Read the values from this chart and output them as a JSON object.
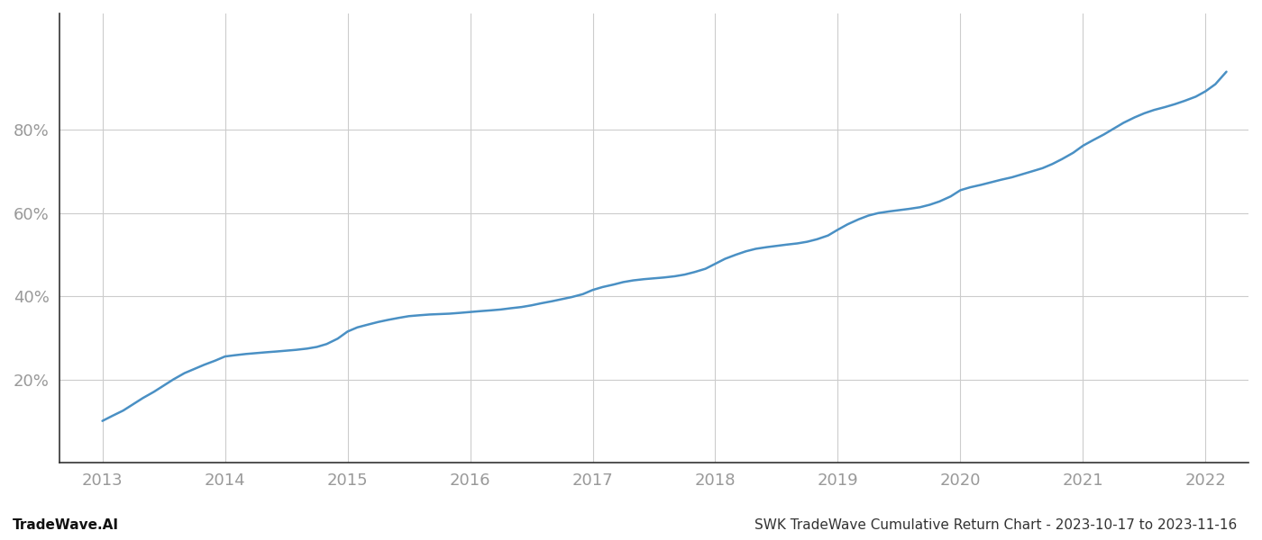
{
  "title": "SWK TradeWave Cumulative Return Chart - 2023-10-17 to 2023-11-16",
  "watermark": "TradeWave.AI",
  "line_color": "#4a90c4",
  "background_color": "#ffffff",
  "grid_color": "#cccccc",
  "x_values": [
    2013.0,
    2013.08,
    2013.17,
    2013.25,
    2013.33,
    2013.42,
    2013.5,
    2013.58,
    2013.67,
    2013.75,
    2013.83,
    2013.92,
    2014.0,
    2014.08,
    2014.17,
    2014.25,
    2014.33,
    2014.42,
    2014.5,
    2014.58,
    2014.67,
    2014.75,
    2014.83,
    2014.92,
    2015.0,
    2015.08,
    2015.17,
    2015.25,
    2015.33,
    2015.42,
    2015.5,
    2015.58,
    2015.67,
    2015.75,
    2015.83,
    2015.92,
    2016.0,
    2016.08,
    2016.17,
    2016.25,
    2016.33,
    2016.42,
    2016.5,
    2016.58,
    2016.67,
    2016.75,
    2016.83,
    2016.92,
    2017.0,
    2017.08,
    2017.17,
    2017.25,
    2017.33,
    2017.42,
    2017.5,
    2017.58,
    2017.67,
    2017.75,
    2017.83,
    2017.92,
    2018.0,
    2018.08,
    2018.17,
    2018.25,
    2018.33,
    2018.42,
    2018.5,
    2018.58,
    2018.67,
    2018.75,
    2018.83,
    2018.92,
    2019.0,
    2019.08,
    2019.17,
    2019.25,
    2019.33,
    2019.42,
    2019.5,
    2019.58,
    2019.67,
    2019.75,
    2019.83,
    2019.92,
    2020.0,
    2020.08,
    2020.17,
    2020.25,
    2020.33,
    2020.42,
    2020.5,
    2020.58,
    2020.67,
    2020.75,
    2020.83,
    2020.92,
    2021.0,
    2021.08,
    2021.17,
    2021.25,
    2021.33,
    2021.42,
    2021.5,
    2021.58,
    2021.67,
    2021.75,
    2021.83,
    2021.92,
    2022.0,
    2022.08,
    2022.17
  ],
  "y_values": [
    0.1,
    0.112,
    0.125,
    0.14,
    0.155,
    0.17,
    0.185,
    0.2,
    0.215,
    0.225,
    0.235,
    0.245,
    0.255,
    0.258,
    0.261,
    0.263,
    0.265,
    0.267,
    0.269,
    0.271,
    0.274,
    0.278,
    0.285,
    0.298,
    0.315,
    0.325,
    0.332,
    0.338,
    0.343,
    0.348,
    0.352,
    0.354,
    0.356,
    0.357,
    0.358,
    0.36,
    0.362,
    0.364,
    0.366,
    0.368,
    0.371,
    0.374,
    0.378,
    0.383,
    0.388,
    0.393,
    0.398,
    0.405,
    0.415,
    0.422,
    0.428,
    0.434,
    0.438,
    0.441,
    0.443,
    0.445,
    0.448,
    0.452,
    0.458,
    0.466,
    0.478,
    0.49,
    0.5,
    0.508,
    0.514,
    0.518,
    0.521,
    0.524,
    0.527,
    0.531,
    0.537,
    0.546,
    0.56,
    0.573,
    0.585,
    0.594,
    0.6,
    0.604,
    0.607,
    0.61,
    0.614,
    0.62,
    0.628,
    0.64,
    0.655,
    0.662,
    0.668,
    0.674,
    0.68,
    0.686,
    0.693,
    0.7,
    0.708,
    0.718,
    0.73,
    0.745,
    0.762,
    0.775,
    0.789,
    0.803,
    0.817,
    0.83,
    0.84,
    0.848,
    0.855,
    0.862,
    0.87,
    0.88,
    0.893,
    0.91,
    0.94
  ],
  "xlim": [
    2012.65,
    2022.35
  ],
  "ylim": [
    0.0,
    1.08
  ],
  "yticks": [
    0.2,
    0.4,
    0.6,
    0.8
  ],
  "ytick_labels": [
    "20%",
    "40%",
    "60%",
    "80%"
  ],
  "xticks": [
    2013,
    2014,
    2015,
    2016,
    2017,
    2018,
    2019,
    2020,
    2021,
    2022
  ],
  "title_fontsize": 11,
  "watermark_fontsize": 11,
  "tick_fontsize": 13,
  "tick_color": "#999999",
  "left_spine_color": "#333333",
  "bottom_spine_color": "#333333",
  "line_width": 1.8
}
